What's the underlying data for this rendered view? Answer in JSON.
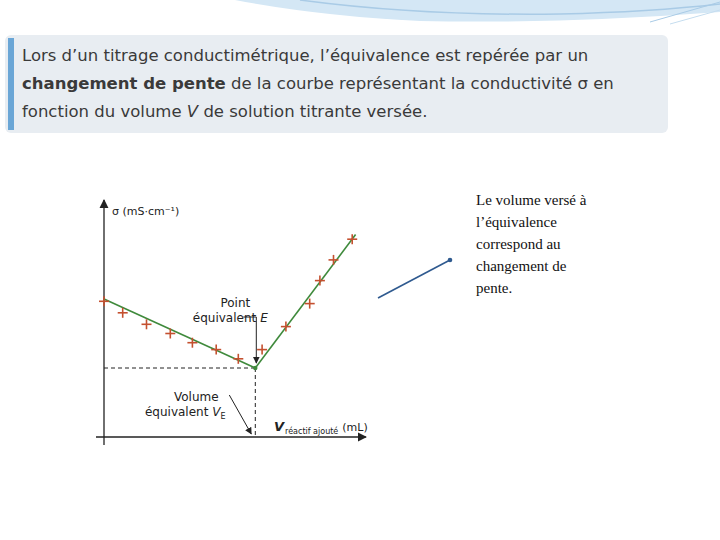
{
  "header": {
    "lines": [
      [
        {
          "text": "Lors d’un titrage conductimétrique, l’équivalence est repérée par un"
        }
      ],
      [
        {
          "text": "changement de pente",
          "style": "bold"
        },
        {
          "text": " de la courbe représentant la conductivité σ en"
        }
      ],
      [
        {
          "text": "fonction du volume "
        },
        {
          "text": "V",
          "style": "italic"
        },
        {
          "text": " de solution titrante versée."
        }
      ]
    ]
  },
  "chart_data": {
    "type": "scatter",
    "y_label": "σ (mS·cm⁻¹)",
    "x_label": {
      "main": "V",
      "sub": "réactif ajouté",
      "unit": "(mL)"
    },
    "xlim": [
      0,
      15
    ],
    "ylim": [
      0,
      10
    ],
    "tick_labels": false,
    "grid": false,
    "series": [
      {
        "type": "scatter",
        "marker": "plus",
        "color": "#c4502f",
        "x": [
          0,
          1.1,
          2.5,
          3.9,
          5.2,
          6.6,
          7.9,
          9.3,
          10.7,
          12.1,
          12.7,
          13.5,
          14.6
        ],
        "values": [
          5.9,
          5.4,
          4.9,
          4.5,
          4.1,
          3.8,
          3.4,
          3.8,
          4.8,
          5.8,
          6.8,
          7.7,
          8.6
        ]
      },
      {
        "type": "line",
        "line_style": "solid",
        "color": "#3f8a3c",
        "x": [
          0,
          8.9
        ],
        "values": [
          6.0,
          3.0
        ]
      },
      {
        "type": "line",
        "line_style": "solid",
        "color": "#3f8a3c",
        "x": [
          8.9,
          14.8
        ],
        "values": [
          3.0,
          8.8
        ]
      }
    ],
    "equivalence": {
      "x": 8.9,
      "y": 3.0,
      "line_style": "dashed"
    },
    "annotations": [
      {
        "lines": [
          "Point",
          "équivalent"
        ],
        "symbol": "E"
      },
      {
        "lines": [
          "Volume",
          "équivalent"
        ],
        "symbol": "V",
        "sub": "E"
      }
    ]
  },
  "side_note": {
    "lines": [
      "Le volume versé à",
      "l’équivalence",
      "correspond au",
      "changement de",
      "pente."
    ]
  }
}
